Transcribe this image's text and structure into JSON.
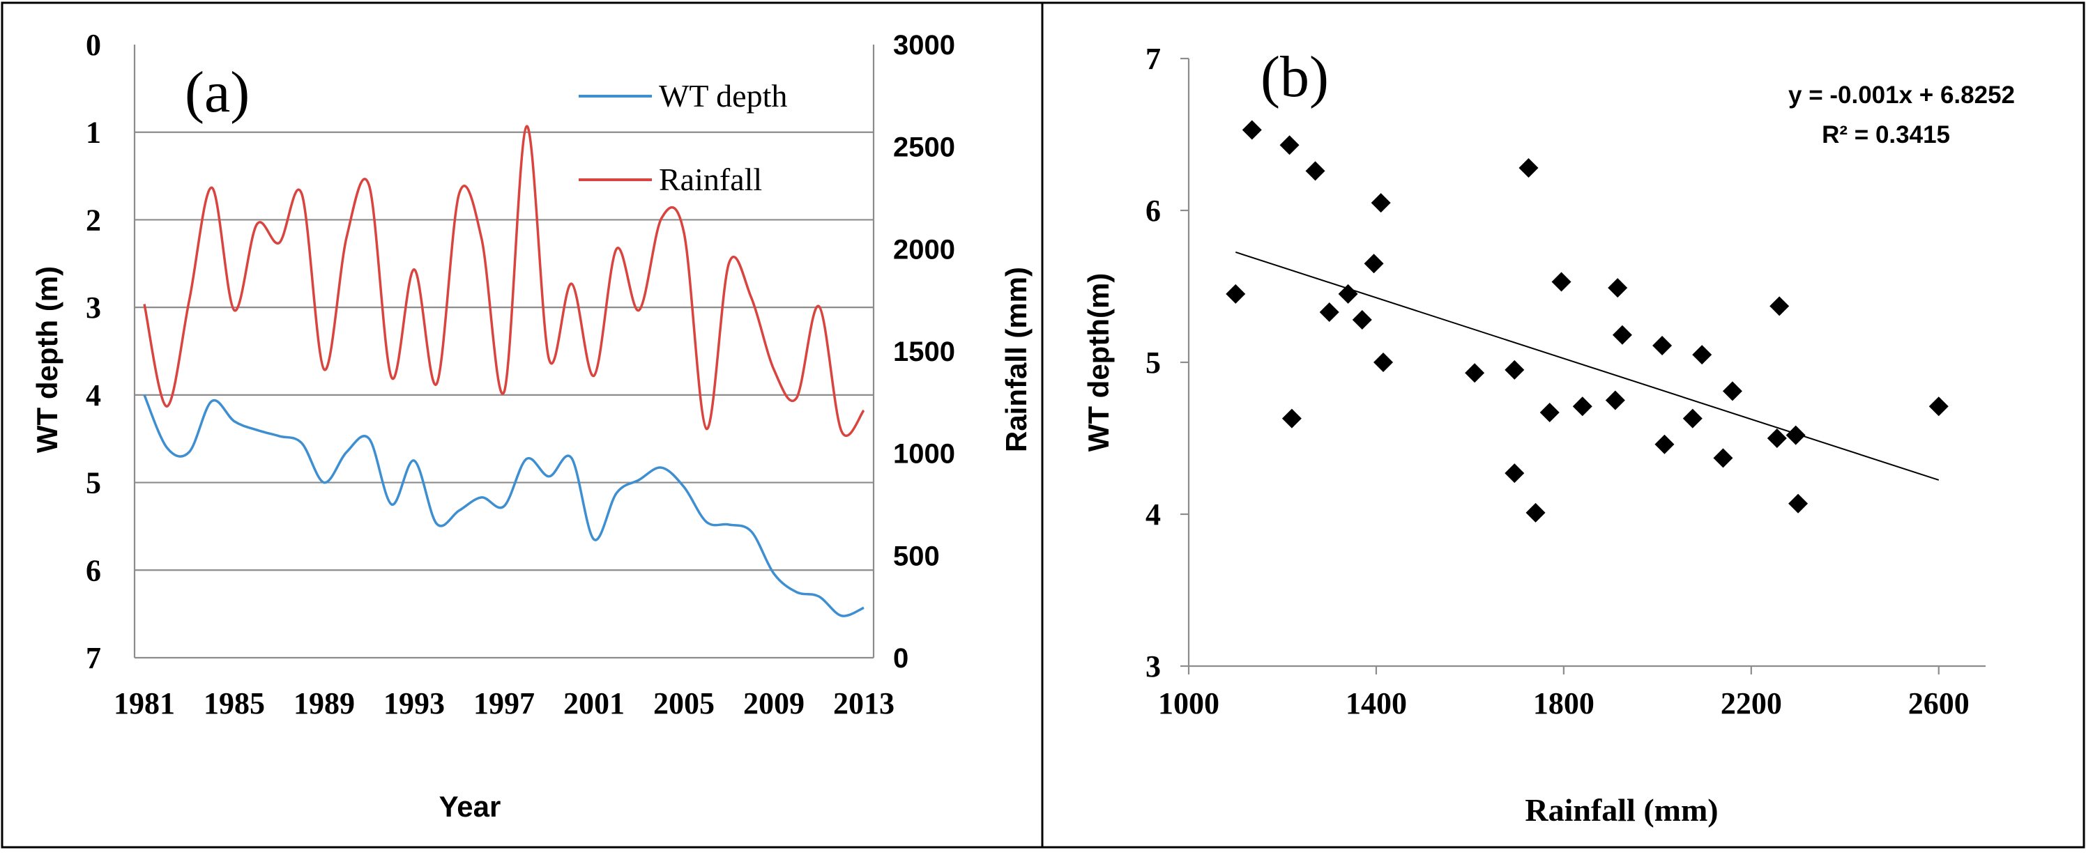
{
  "chart_data": [
    {
      "type": "line",
      "panel_label": "(a)",
      "xlabel": "Year",
      "ylabel": "WT depth (m)",
      "y2label": "Rainfall (mm)",
      "x": [
        1981,
        1982,
        1983,
        1984,
        1985,
        1986,
        1987,
        1988,
        1989,
        1990,
        1991,
        1992,
        1993,
        1994,
        1995,
        1996,
        1997,
        1998,
        1999,
        2000,
        2001,
        2002,
        2003,
        2004,
        2005,
        2006,
        2007,
        2008,
        2009,
        2010,
        2011,
        2012,
        2013
      ],
      "xticks": [
        "1981",
        "1985",
        "1989",
        "1993",
        "1997",
        "2001",
        "2005",
        "2009",
        "2013"
      ],
      "ylim": [
        0,
        7
      ],
      "yticks": [
        "0",
        "1",
        "2",
        "3",
        "4",
        "5",
        "6",
        "7"
      ],
      "y2lim": [
        0,
        3000
      ],
      "y2ticks": [
        "0",
        "500",
        "1000",
        "1500",
        "2000",
        "2500",
        "3000"
      ],
      "series": [
        {
          "name": "WT depth",
          "axis": "left",
          "color": "#3d8fd1",
          "values": [
            4.0,
            4.6,
            4.65,
            4.07,
            4.3,
            4.4,
            4.47,
            4.55,
            5.0,
            4.65,
            4.5,
            5.25,
            4.75,
            5.47,
            5.32,
            5.17,
            5.27,
            4.73,
            4.93,
            4.72,
            5.65,
            5.12,
            4.97,
            4.83,
            5.05,
            5.45,
            5.48,
            5.56,
            6.04,
            6.25,
            6.3,
            6.52,
            6.43
          ]
        },
        {
          "name": "Rainfall",
          "axis": "right",
          "color": "#d9443f",
          "values": [
            1730,
            1230,
            1750,
            2300,
            1700,
            2120,
            2030,
            2270,
            1410,
            2060,
            2310,
            1370,
            1900,
            1340,
            2270,
            2050,
            1300,
            2600,
            1460,
            1830,
            1380,
            2000,
            1700,
            2150,
            2080,
            1120,
            1930,
            1760,
            1410,
            1270,
            1720,
            1110,
            1210
          ]
        }
      ],
      "legend": [
        "WT depth",
        "Rainfall"
      ]
    },
    {
      "type": "scatter",
      "panel_label": "(b)",
      "xlabel": "Rainfall (mm)",
      "ylabel": "WT depth(m)",
      "xlim": [
        1000,
        2700
      ],
      "xticks": [
        "1000",
        "1400",
        "1800",
        "2200",
        "2600"
      ],
      "ylim": [
        3,
        7
      ],
      "yticks": [
        "3",
        "4",
        "5",
        "6",
        "7"
      ],
      "points": [
        [
          1100,
          5.45
        ],
        [
          1135,
          6.53
        ],
        [
          1215,
          6.43
        ],
        [
          1220,
          4.63
        ],
        [
          1270,
          6.26
        ],
        [
          1300,
          5.33
        ],
        [
          1340,
          5.45
        ],
        [
          1370,
          5.28
        ],
        [
          1395,
          5.65
        ],
        [
          1410,
          6.05
        ],
        [
          1415,
          5.0
        ],
        [
          1610,
          4.93
        ],
        [
          1695,
          4.95
        ],
        [
          1695,
          4.27
        ],
        [
          1725,
          6.28
        ],
        [
          1740,
          4.01
        ],
        [
          1770,
          4.67
        ],
        [
          1795,
          5.53
        ],
        [
          1840,
          4.71
        ],
        [
          1910,
          4.75
        ],
        [
          1915,
          5.49
        ],
        [
          1925,
          5.18
        ],
        [
          2010,
          5.11
        ],
        [
          2015,
          4.46
        ],
        [
          2075,
          4.63
        ],
        [
          2095,
          5.05
        ],
        [
          2140,
          4.37
        ],
        [
          2160,
          4.81
        ],
        [
          2255,
          4.5
        ],
        [
          2260,
          5.37
        ],
        [
          2295,
          4.52
        ],
        [
          2300,
          4.07
        ],
        [
          2600,
          4.71
        ]
      ],
      "trendline": {
        "slope": -0.001,
        "intercept": 6.8252,
        "x_range": [
          1100,
          2600
        ]
      },
      "equation": "y = -0.001x + 6.8252",
      "r2_label": "R² = 0.3415"
    }
  ]
}
